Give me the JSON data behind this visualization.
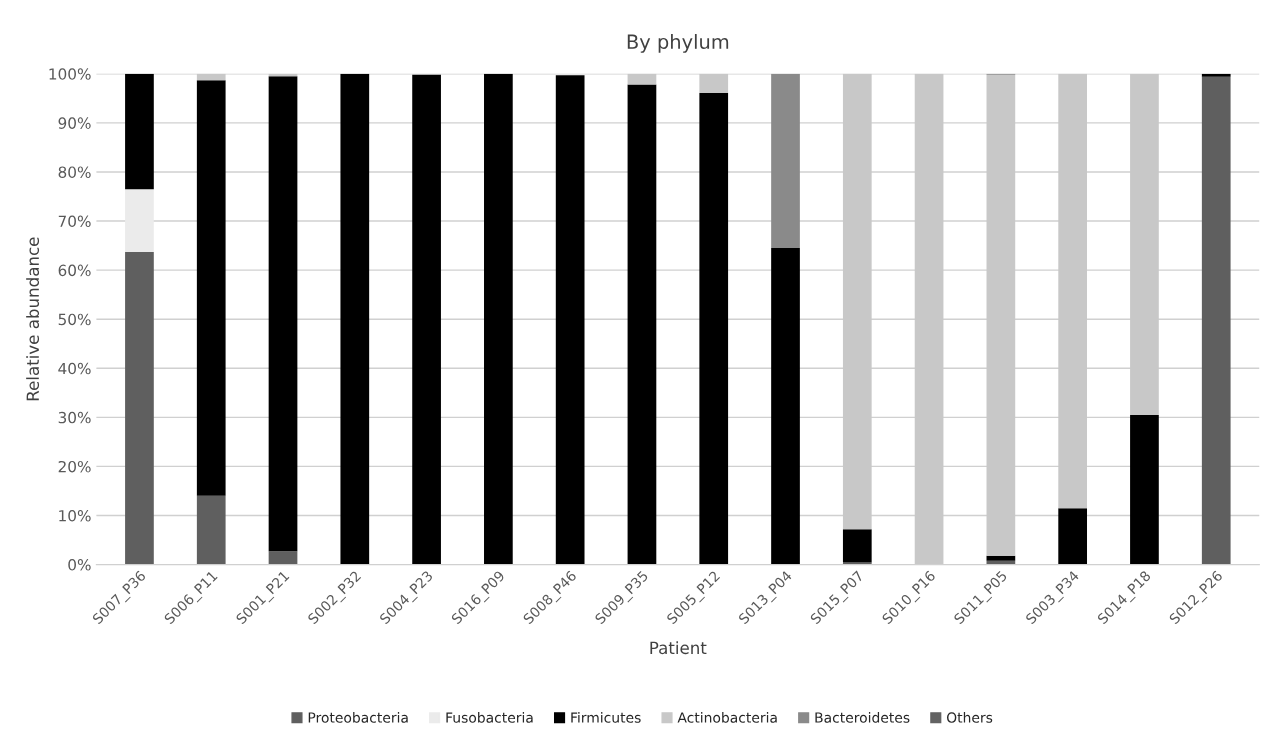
{
  "chart_data": {
    "type": "bar",
    "stacked": true,
    "title": "By phylum",
    "xlabel": "Patient",
    "ylabel": "Relative abundance",
    "categories": [
      "S007_P36",
      "S006_P11",
      "S001_P21",
      "S002_P32",
      "S004_P23",
      "S016_P09",
      "S008_P46",
      "S009_P35",
      "S005_P12",
      "S013_P04",
      "S015_P07",
      "S010_P16",
      "S011_P05",
      "S003_P34",
      "S014_P18",
      "S012_P26"
    ],
    "series": [
      {
        "name": "Proteobacteria",
        "color": "#5f5f5f",
        "values": [
          63.7,
          14,
          2.7,
          0,
          0,
          0,
          0,
          0,
          0,
          0,
          0.4,
          0,
          0.8,
          0,
          0,
          99.4
        ]
      },
      {
        "name": "Fusobacteria",
        "color": "#ebebeb",
        "values": [
          12.8,
          0,
          0,
          0,
          0,
          0,
          0,
          0,
          0,
          0,
          0,
          0,
          0,
          0,
          0,
          0
        ]
      },
      {
        "name": "Firmicutes",
        "color": "#000000",
        "values": [
          23.5,
          84.7,
          96.8,
          100,
          99.8,
          100,
          99.7,
          97.8,
          96.1,
          64.5,
          6.8,
          0,
          1.0,
          11.5,
          30.5,
          0.6
        ]
      },
      {
        "name": "Actinobacteria",
        "color": "#c8c8c8",
        "values": [
          0,
          1.3,
          0.5,
          0,
          null,
          0,
          null,
          2.2,
          3.9,
          0,
          92.8,
          100,
          98.0,
          88.5,
          69.5,
          0
        ]
      },
      {
        "name": "Bacteroidetes",
        "color": "#8a8a8a",
        "values": [
          0,
          0,
          0,
          0,
          0,
          0,
          0,
          0,
          0,
          35.5,
          0,
          0,
          0.2,
          0,
          0,
          0
        ]
      },
      {
        "name": "Others",
        "color": "#636363",
        "values": [
          0,
          0,
          0,
          0,
          0,
          0,
          0,
          0,
          0,
          0,
          0,
          0,
          0,
          0,
          0,
          0
        ]
      }
    ],
    "ylim": [
      0,
      100
    ],
    "yticks": [
      {
        "value": 0,
        "label": "0%"
      },
      {
        "value": 10,
        "label": "10%"
      },
      {
        "value": 20,
        "label": "20%"
      },
      {
        "value": 30,
        "label": "30%"
      },
      {
        "value": 40,
        "label": "40%"
      },
      {
        "value": 50,
        "label": "50%"
      },
      {
        "value": 60,
        "label": "60%"
      },
      {
        "value": 70,
        "label": "70%"
      },
      {
        "value": 80,
        "label": "80%"
      },
      {
        "value": 90,
        "label": "90%"
      },
      {
        "value": 100,
        "label": "100%"
      }
    ],
    "grid": "y",
    "legend": "bottom"
  }
}
